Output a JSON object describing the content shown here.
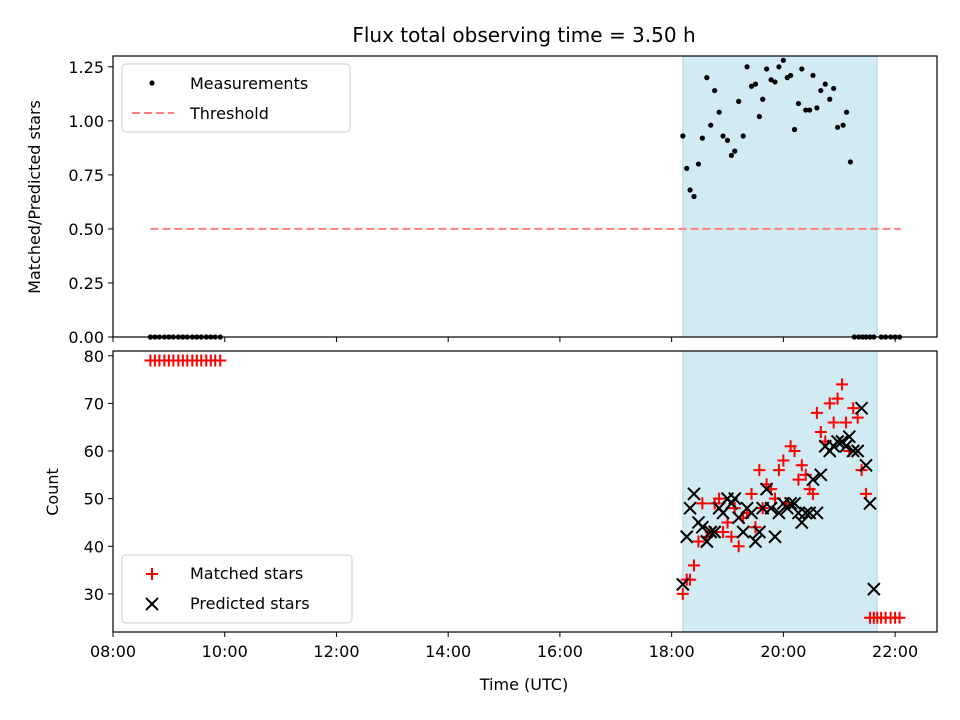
{
  "chart_data": [
    {
      "type": "scatter",
      "title": "Flux total observing time = 3.50 h",
      "xlabel": "",
      "ylabel": "Matched/Predicted stars",
      "xlim": [
        8.0,
        22.75
      ],
      "ylim": [
        0.0,
        1.3
      ],
      "yticks": [
        0.0,
        0.25,
        0.5,
        0.75,
        1.0,
        1.25
      ],
      "ytick_labels": [
        "0.00",
        "0.25",
        "0.50",
        "0.75",
        "1.00",
        "1.25"
      ],
      "shaded_interval": [
        18.2,
        21.68
      ],
      "shade_color": "#add8e6",
      "legend": {
        "placement": "top-left",
        "entries": [
          "Measurements",
          "Threshold"
        ]
      },
      "series": [
        {
          "name": "Measurements",
          "marker": "dot",
          "color": "#000000",
          "x": [
            8.67,
            8.75,
            8.83,
            8.92,
            9.0,
            9.08,
            9.17,
            9.25,
            9.33,
            9.42,
            9.5,
            9.58,
            9.67,
            9.75,
            9.83,
            9.92,
            18.2,
            18.27,
            18.33,
            18.4,
            18.48,
            18.55,
            18.63,
            18.7,
            18.77,
            18.85,
            18.92,
            19.0,
            19.07,
            19.13,
            19.2,
            19.28,
            19.35,
            19.43,
            19.5,
            19.57,
            19.63,
            19.7,
            19.78,
            19.85,
            19.92,
            20.0,
            20.07,
            20.13,
            20.2,
            20.27,
            20.33,
            20.4,
            20.47,
            20.53,
            20.6,
            20.67,
            20.75,
            20.83,
            20.9,
            20.97,
            21.07,
            21.13,
            21.2,
            21.27,
            21.35,
            21.42,
            21.48,
            21.55,
            21.62,
            21.75,
            21.83,
            21.92,
            22.0,
            22.08
          ],
          "y": [
            0,
            0,
            0,
            0,
            0,
            0,
            0,
            0,
            0,
            0,
            0,
            0,
            0,
            0,
            0,
            0,
            0.93,
            0.78,
            0.68,
            0.65,
            0.8,
            0.92,
            1.2,
            0.98,
            1.14,
            1.04,
            0.93,
            0.91,
            0.84,
            0.86,
            1.09,
            0.93,
            1.25,
            1.16,
            1.17,
            1.02,
            1.1,
            1.24,
            1.19,
            1.18,
            1.25,
            1.28,
            1.2,
            1.21,
            0.96,
            1.08,
            1.24,
            1.05,
            1.05,
            1.21,
            1.06,
            1.14,
            1.17,
            1.1,
            1.15,
            0.97,
            0.98,
            1.04,
            0.81,
            0,
            0,
            0,
            0,
            0,
            0,
            0,
            0,
            0,
            0,
            0
          ]
        },
        {
          "name": "Threshold",
          "marker": "dashed-line",
          "color": "#ff7f7f",
          "x": [
            8.67,
            22.1
          ],
          "y": [
            0.5,
            0.5
          ]
        }
      ]
    },
    {
      "type": "scatter",
      "title": "",
      "xlabel": "Time (UTC)",
      "ylabel": "Count",
      "xlim": [
        8.0,
        22.75
      ],
      "ylim": [
        22,
        81
      ],
      "xticks": [
        8,
        10,
        12,
        14,
        16,
        18,
        20,
        22
      ],
      "xtick_labels": [
        "08:00",
        "10:00",
        "12:00",
        "14:00",
        "16:00",
        "18:00",
        "20:00",
        "22:00"
      ],
      "yticks": [
        30,
        40,
        50,
        60,
        70,
        80
      ],
      "ytick_labels": [
        "30",
        "40",
        "50",
        "60",
        "70",
        "80"
      ],
      "shaded_interval": [
        18.2,
        21.68
      ],
      "shade_color": "#add8e6",
      "legend": {
        "placement": "bottom-left",
        "entries": [
          "Matched stars",
          "Predicted stars"
        ]
      },
      "series": [
        {
          "name": "Matched stars",
          "marker": "plus",
          "color": "#ff0000",
          "x": [
            8.67,
            8.75,
            8.83,
            8.92,
            9.0,
            9.08,
            9.17,
            9.25,
            9.33,
            9.42,
            9.5,
            9.58,
            9.67,
            9.75,
            9.83,
            9.92,
            18.2,
            18.27,
            18.33,
            18.4,
            18.48,
            18.55,
            18.63,
            18.7,
            18.77,
            18.85,
            18.92,
            19.0,
            19.07,
            19.13,
            19.2,
            19.28,
            19.35,
            19.43,
            19.5,
            19.57,
            19.63,
            19.7,
            19.78,
            19.85,
            19.92,
            20.0,
            20.07,
            20.13,
            20.2,
            20.27,
            20.33,
            20.4,
            20.47,
            20.53,
            20.6,
            20.67,
            20.75,
            20.83,
            20.9,
            20.97,
            21.05,
            21.12,
            21.18,
            21.25,
            21.33,
            21.4,
            21.48,
            21.55,
            21.62,
            21.68,
            21.75,
            21.83,
            21.92,
            22.0,
            22.08
          ],
          "y": [
            79,
            79,
            79,
            79,
            79,
            79,
            79,
            79,
            79,
            79,
            79,
            79,
            79,
            79,
            79,
            79,
            30,
            33,
            33,
            36,
            41,
            49,
            42,
            43,
            49,
            50,
            43,
            45,
            42,
            48,
            40,
            46,
            47,
            51,
            44,
            56,
            48,
            53,
            52,
            50,
            56,
            58,
            49,
            61,
            60,
            54,
            57,
            55,
            52,
            51,
            68,
            64,
            62,
            70,
            66,
            71,
            74,
            66,
            60,
            69,
            67,
            56,
            51,
            25,
            25,
            25,
            25,
            25,
            25,
            25,
            25
          ]
        },
        {
          "name": "Predicted stars",
          "marker": "x",
          "color": "#000000",
          "x": [
            18.2,
            18.27,
            18.33,
            18.4,
            18.48,
            18.55,
            18.63,
            18.7,
            18.77,
            18.85,
            18.92,
            19.0,
            19.07,
            19.13,
            19.2,
            19.28,
            19.35,
            19.43,
            19.5,
            19.57,
            19.63,
            19.7,
            19.78,
            19.85,
            19.92,
            20.0,
            20.07,
            20.13,
            20.2,
            20.27,
            20.33,
            20.4,
            20.47,
            20.53,
            20.6,
            20.67,
            20.75,
            20.83,
            20.9,
            20.97,
            21.05,
            21.12,
            21.18,
            21.25,
            21.33,
            21.4,
            21.48,
            21.55,
            21.62
          ],
          "y": [
            32,
            42,
            48,
            51,
            45,
            44,
            41,
            43,
            43,
            48,
            47,
            50,
            49,
            50,
            46,
            43,
            48,
            47,
            41,
            43,
            48,
            52,
            48,
            42,
            47,
            49,
            48,
            49,
            49,
            47,
            45,
            47,
            47,
            54,
            47,
            55,
            61,
            60,
            61,
            62,
            62,
            61,
            63,
            60,
            60,
            69,
            57,
            49,
            31
          ]
        }
      ]
    }
  ]
}
